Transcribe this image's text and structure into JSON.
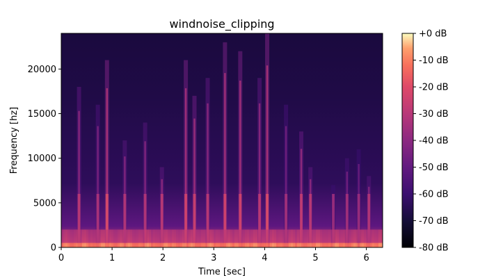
{
  "chart_data": {
    "type": "heatmap",
    "title": "windnoise_clipping",
    "xlabel": "Time [sec]",
    "ylabel": "Frequency [hz]",
    "xlim": [
      0,
      6.32
    ],
    "ylim": [
      0,
      24000
    ],
    "x_ticks": [
      {
        "value": 0,
        "label": "0"
      },
      {
        "value": 1,
        "label": "1"
      },
      {
        "value": 2,
        "label": "2"
      },
      {
        "value": 3,
        "label": "3"
      },
      {
        "value": 4,
        "label": "4"
      },
      {
        "value": 5,
        "label": "5"
      },
      {
        "value": 6,
        "label": "6"
      }
    ],
    "y_ticks": [
      {
        "value": 0,
        "label": "0"
      },
      {
        "value": 5000,
        "label": "5000"
      },
      {
        "value": 10000,
        "label": "10000"
      },
      {
        "value": 15000,
        "label": "15000"
      },
      {
        "value": 20000,
        "label": "20000"
      }
    ],
    "colorbar": {
      "colormap": "magma",
      "range_db": [
        -80,
        0
      ],
      "ticks": [
        {
          "value": 0,
          "label": "+0 dB"
        },
        {
          "value": -10,
          "label": "-10 dB"
        },
        {
          "value": -20,
          "label": "-20 dB"
        },
        {
          "value": -30,
          "label": "-30 dB"
        },
        {
          "value": -40,
          "label": "-40 dB"
        },
        {
          "value": -50,
          "label": "-50 dB"
        },
        {
          "value": -60,
          "label": "-60 dB"
        },
        {
          "value": -70,
          "label": "-70 dB"
        },
        {
          "value": -80,
          "label": "-80 dB"
        }
      ]
    },
    "grid": false,
    "energy_bursts": [
      {
        "time": 0.35,
        "top_freq": 18000,
        "peak_db": -38
      },
      {
        "time": 0.72,
        "top_freq": 16000,
        "peak_db": -42
      },
      {
        "time": 0.9,
        "top_freq": 21000,
        "peak_db": -30
      },
      {
        "time": 1.25,
        "top_freq": 12000,
        "peak_db": -40
      },
      {
        "time": 1.65,
        "top_freq": 14000,
        "peak_db": -40
      },
      {
        "time": 1.98,
        "top_freq": 9000,
        "peak_db": -38
      },
      {
        "time": 2.45,
        "top_freq": 21000,
        "peak_db": -32
      },
      {
        "time": 2.62,
        "top_freq": 17000,
        "peak_db": -34
      },
      {
        "time": 2.88,
        "top_freq": 19000,
        "peak_db": -38
      },
      {
        "time": 3.22,
        "top_freq": 23000,
        "peak_db": -32
      },
      {
        "time": 3.52,
        "top_freq": 22000,
        "peak_db": -32
      },
      {
        "time": 3.9,
        "top_freq": 19000,
        "peak_db": -38
      },
      {
        "time": 4.05,
        "top_freq": 24000,
        "peak_db": -30
      },
      {
        "time": 4.42,
        "top_freq": 16000,
        "peak_db": -44
      },
      {
        "time": 4.72,
        "top_freq": 13000,
        "peak_db": -36
      },
      {
        "time": 4.9,
        "top_freq": 9000,
        "peak_db": -38
      },
      {
        "time": 5.35,
        "top_freq": 7000,
        "peak_db": -46
      },
      {
        "time": 5.62,
        "top_freq": 10000,
        "peak_db": -44
      },
      {
        "time": 5.85,
        "top_freq": 11000,
        "peak_db": -46
      },
      {
        "time": 6.05,
        "top_freq": 8000,
        "peak_db": -40
      }
    ]
  }
}
